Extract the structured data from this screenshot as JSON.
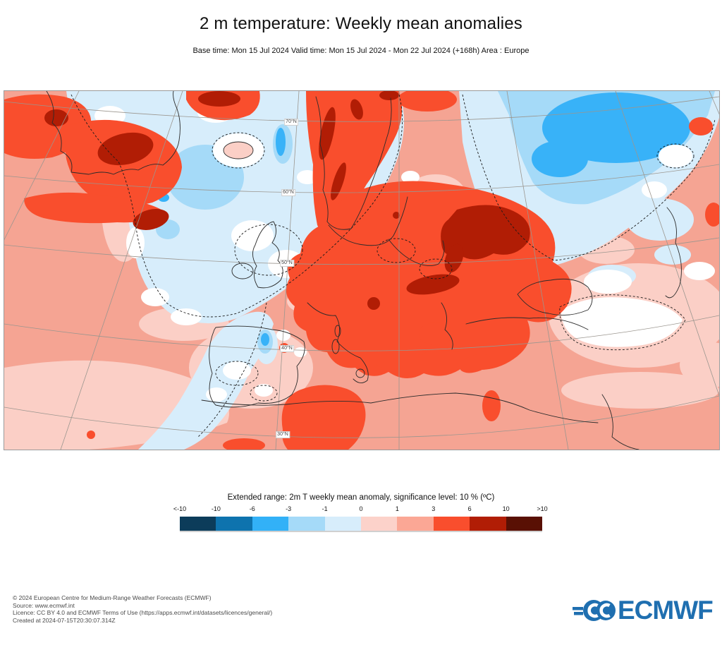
{
  "header": {
    "title": "2 m temperature: Weekly mean anomalies",
    "subtitle": "Base time: Mon 15 Jul 2024 Valid time: Mon 15 Jul 2024 - Mon 22 Jul 2024 (+168h) Area : Europe"
  },
  "map": {
    "latitude_labels": [
      "70°N",
      "60°N",
      "50°N",
      "40°N",
      "30°N"
    ]
  },
  "legend": {
    "title": "Extended range: 2m T weekly mean anomaly, significance level: 10 % (ºC)",
    "tick_labels": [
      "<-10",
      "-10",
      "-6",
      "-3",
      "-1",
      "0",
      "1",
      "3",
      "6",
      "10",
      ">10"
    ],
    "colors": [
      "#0c3c5a",
      "#0e73ae",
      "#32b1f7",
      "#a5daf8",
      "#d7edfb",
      "#fcd2ca",
      "#fba795",
      "#f94e2d",
      "#b11d05",
      "#591004"
    ]
  },
  "footer": {
    "lines": [
      "© 2024 European Centre for Medium-Range Weather Forecasts (ECMWF)",
      "Source: www.ecmwf.int",
      "Licence: CC BY 4.0 and ECMWF Terms of Use (https://apps.ecmwf.int/datasets/licences/general/)",
      "Created at 2024-07-15T20:30:07.314Z"
    ],
    "logo_text": "ECMWF",
    "logo_color": "#1f6fb0"
  }
}
